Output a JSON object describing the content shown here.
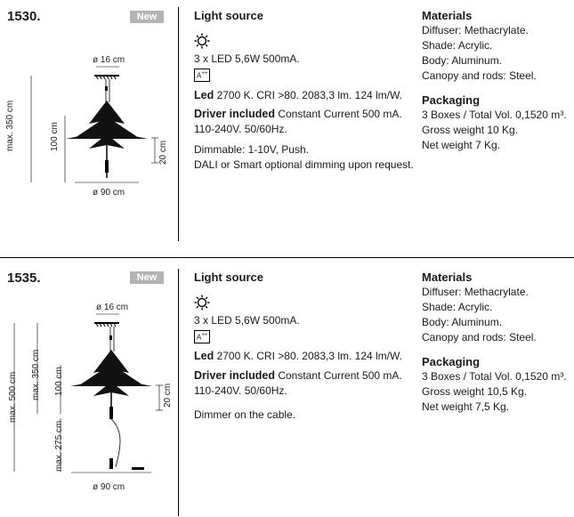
{
  "products": [
    {
      "model": "1530.",
      "badge": "New",
      "dims": {
        "canopy": "ø 16 cm",
        "width": "ø 90 cm",
        "height_max": "max. 350 cm",
        "body_height": "100 cm",
        "module": "20 cm"
      },
      "light_source_title": "Light source",
      "led_line": "3 x LED 5,6W 500mA.",
      "energy_label": "A",
      "energy_sup": "++",
      "led_title": "Led",
      "led_spec": " 2700 K. CRI >80. 2083,3 lm. 124 lm/W.",
      "driver_title": "Driver included",
      "driver_spec": " Constant Current 500 mA.",
      "voltage": "110-240V. 50/60Hz.",
      "dimming_1": "Dimmable: 1-10V, Push.",
      "dimming_2": "DALI or Smart optional dimming upon request.",
      "materials_title": "Materials",
      "materials": [
        "Diffuser: Methacrylate.",
        "Shade: Acrylic.",
        "Body: Aluminum.",
        "Canopy and rods: Steel."
      ],
      "packaging_title": "Packaging",
      "packaging": [
        "3 Boxes / Total Vol. 0,1520 m³.",
        "Gross weight 10 Kg.",
        "Net weight 7 Kg."
      ]
    },
    {
      "model": "1535.",
      "badge": "New",
      "dims": {
        "canopy": "ø 16 cm",
        "width": "ø 90 cm",
        "height_total": "max. 500 cm",
        "height_max": "max. 350 cm",
        "body_height": "100 cm",
        "floor": "max. 275 cm",
        "module": "20 cm"
      },
      "light_source_title": "Light source",
      "led_line": "3 x LED 5,6W 500mA.",
      "energy_label": "A",
      "energy_sup": "++",
      "led_title": "Led",
      "led_spec": " 2700 K. CRI >80. 2083,3 lm. 124 lm/W.",
      "driver_title": "Driver included",
      "driver_spec": " Constant Current 500 mA.",
      "voltage": "110-240V. 50/60Hz.",
      "dimming_1": "Dimmer on the cable.",
      "materials_title": "Materials",
      "materials": [
        "Diffuser: Methacrylate.",
        "Shade: Acrylic.",
        "Body: Aluminum.",
        "Canopy and rods: Steel."
      ],
      "packaging_title": "Packaging",
      "packaging": [
        "3 Boxes / Total Vol. 0,1520 m³.",
        "Gross weight 10,5 Kg.",
        "Net weight 7,5 Kg."
      ]
    }
  ]
}
